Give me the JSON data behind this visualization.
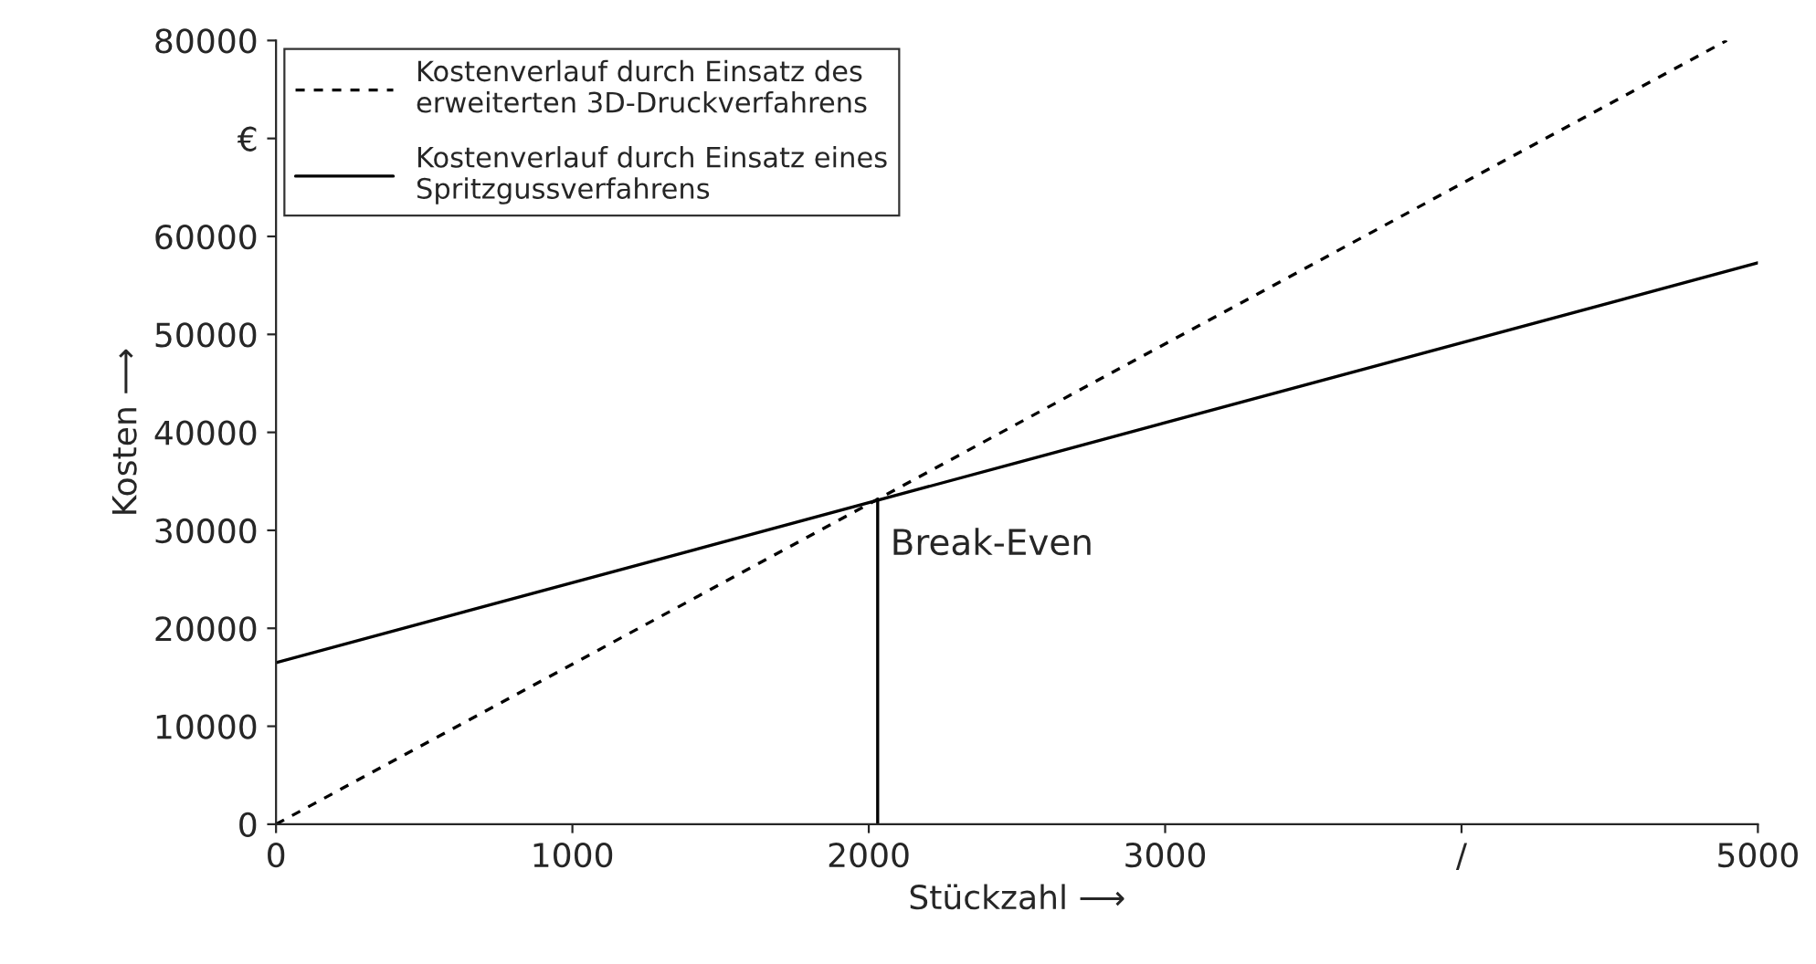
{
  "chart_data": {
    "type": "line",
    "xlabel": "Stückzahl ⟶",
    "ylabel": "Kosten ⟶",
    "series": [
      {
        "name": "Kostenverlauf durch Einsatz des\nerweiterten 3D-Druckverfahrens",
        "color": "#000000",
        "line_style": "dashed",
        "x": [
          0,
          4895
        ],
        "values": [
          0,
          80000
        ]
      },
      {
        "name": "Kostenverlauf durch Einsatz eines\nSpritzgussverfahrens",
        "color": "#000000",
        "line_style": "solid",
        "x": [
          0,
          5000
        ],
        "values": [
          16500,
          57300
        ]
      },
      {
        "color": "#000000",
        "line_style": "solid",
        "x": [
          2030,
          2030
        ],
        "values": [
          0,
          33200
        ]
      }
    ],
    "annotations": [
      {
        "text": "Break-Even",
        "x": 2030,
        "y": 28500
      }
    ],
    "xlim": [
      0,
      5000
    ],
    "xticks": [
      0,
      1000,
      2000,
      3000,
      {
        "value": 4000,
        "label": "/"
      },
      5000
    ],
    "ylim": [
      0,
      80000
    ],
    "yticks": [
      0,
      10000,
      20000,
      30000,
      40000,
      50000,
      60000,
      {
        "value": 70000,
        "label": "€"
      },
      80000
    ],
    "grid": false,
    "legend": "top left"
  }
}
